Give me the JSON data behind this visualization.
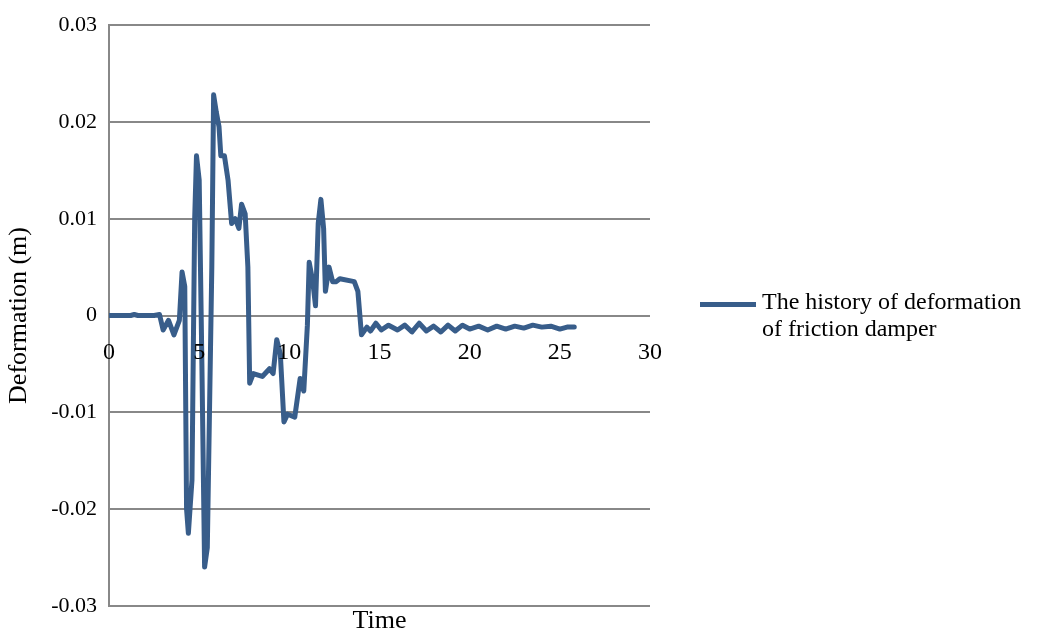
{
  "chart_data": {
    "type": "line",
    "xlabel": "Time",
    "ylabel": "Deformation (m)",
    "xlim": [
      0,
      30
    ],
    "xticks": [
      0,
      5,
      10,
      15,
      20,
      25,
      30
    ],
    "ylim": [
      -0.03,
      0.03
    ],
    "yticks": [
      -0.03,
      -0.02,
      -0.01,
      0,
      0.01,
      0.02,
      0.03
    ],
    "grid": "y",
    "legend": "right",
    "marker": "none",
    "series": [
      {
        "name": "The history of deformation of friction damper",
        "color": "#385d8a",
        "x": [
          0,
          1.2,
          1.4,
          1.6,
          2.5,
          2.8,
          3.0,
          3.3,
          3.6,
          3.9,
          4.05,
          4.2,
          4.3,
          4.4,
          4.6,
          4.75,
          4.85,
          5.0,
          5.15,
          5.3,
          5.45,
          5.7,
          5.8,
          5.95,
          6.1,
          6.2,
          6.4,
          6.6,
          6.8,
          7.0,
          7.2,
          7.35,
          7.55,
          7.7,
          7.8,
          8.0,
          8.5,
          8.9,
          9.1,
          9.3,
          9.5,
          9.7,
          9.9,
          10.3,
          10.6,
          10.8,
          11.0,
          11.1,
          11.3,
          11.45,
          11.6,
          11.75,
          11.9,
          12.0,
          12.2,
          12.4,
          12.6,
          12.8,
          13.6,
          13.8,
          14.0,
          14.3,
          14.5,
          14.8,
          15.1,
          15.5,
          16.0,
          16.4,
          16.8,
          17.2,
          17.6,
          18.0,
          18.4,
          18.8,
          19.2,
          19.6,
          20.0,
          20.5,
          21.0,
          21.5,
          22.0,
          22.5,
          23.0,
          23.5,
          24.0,
          24.5,
          25.0,
          25.4,
          25.8
        ],
        "values": [
          0,
          0,
          0.0001,
          0,
          0,
          0.0001,
          -0.0015,
          -0.0005,
          -0.002,
          -0.0005,
          0.0045,
          0.003,
          -0.02,
          -0.0225,
          -0.017,
          0.01,
          0.0165,
          0.014,
          -0.005,
          -0.026,
          -0.024,
          0.005,
          0.0228,
          0.021,
          0.0195,
          0.0165,
          0.0165,
          0.014,
          0.0095,
          0.01,
          0.009,
          0.0115,
          0.0105,
          0.005,
          -0.007,
          -0.006,
          -0.0063,
          -0.0055,
          -0.006,
          -0.0025,
          -0.004,
          -0.011,
          -0.0102,
          -0.0105,
          -0.0065,
          -0.0078,
          -0.001,
          0.0055,
          0.0035,
          0.001,
          0.0095,
          0.012,
          0.009,
          0.0025,
          0.005,
          0.0035,
          0.0035,
          0.0038,
          0.0035,
          0.0025,
          -0.002,
          -0.0012,
          -0.0016,
          -0.0008,
          -0.0015,
          -0.001,
          -0.0015,
          -0.001,
          -0.0017,
          -0.0008,
          -0.0016,
          -0.0011,
          -0.0017,
          -0.001,
          -0.0016,
          -0.001,
          -0.0014,
          -0.0011,
          -0.0015,
          -0.0011,
          -0.0014,
          -0.0011,
          -0.0013,
          -0.001,
          -0.0012,
          -0.0011,
          -0.0014,
          -0.0012,
          -0.0012
        ]
      }
    ]
  }
}
